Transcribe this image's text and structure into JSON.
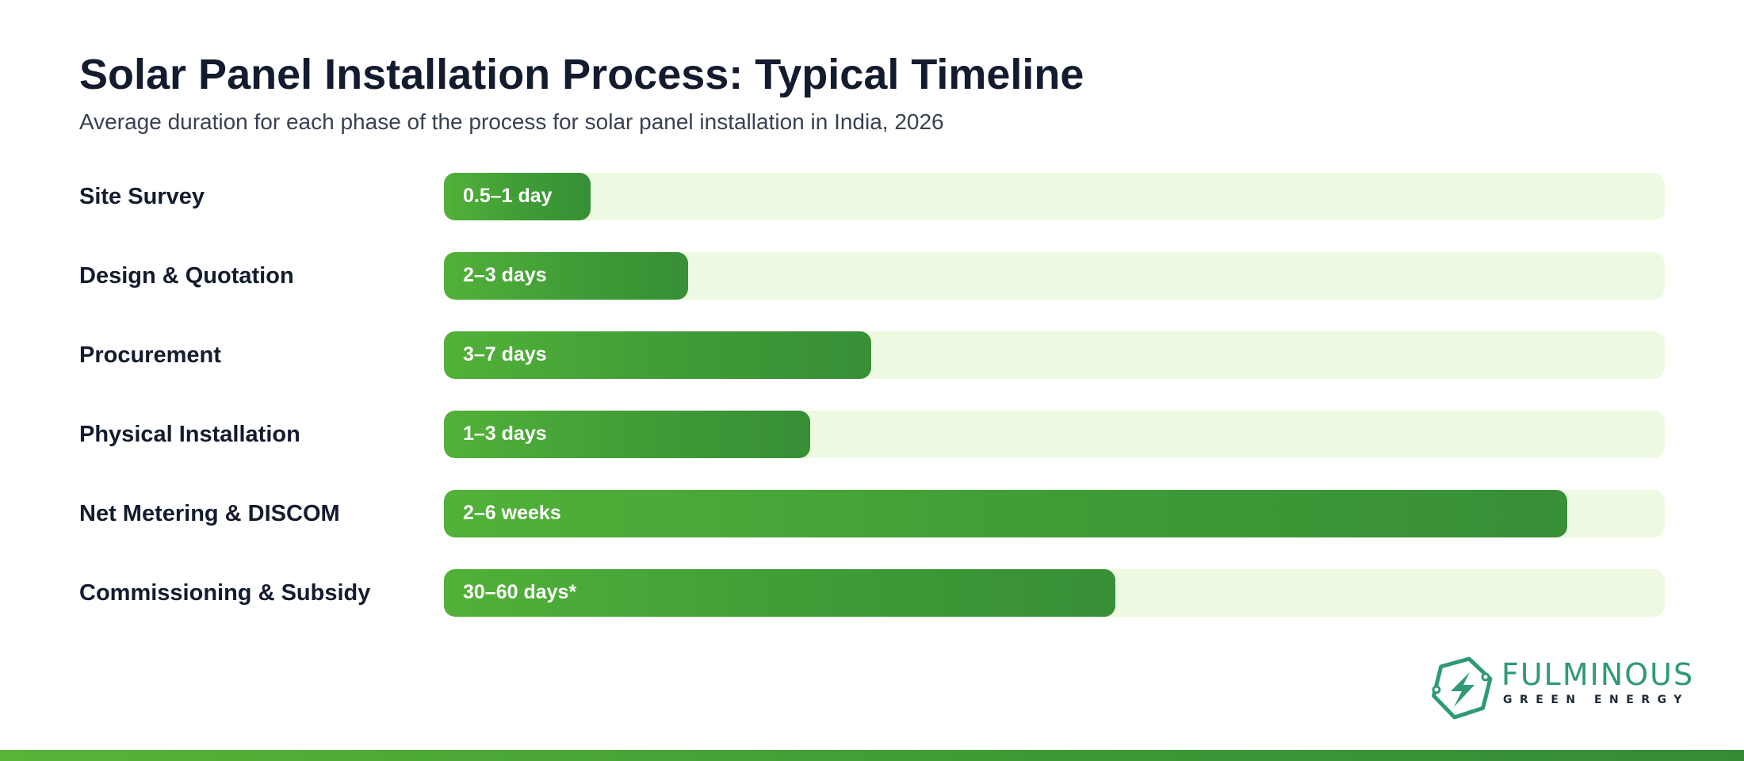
{
  "chart_data": {
    "type": "bar",
    "orientation": "horizontal",
    "title": "Solar Panel Installation Process: Typical Timeline",
    "subtitle": "Average duration for each phase of the process for solar panel installation in India, 2026",
    "categories": [
      "Site Survey",
      "Design & Quotation",
      "Procurement",
      "Physical Installation",
      "Net Metering & DISCOM",
      "Commissioning & Subsidy"
    ],
    "value_labels": [
      "0.5–1 day",
      "2–3 days",
      "3–7 days",
      "1–3 days",
      "2–6 weeks",
      "30–60 days*"
    ],
    "values": [
      0.12,
      0.2,
      0.35,
      0.3,
      0.92,
      0.55
    ],
    "ylim": [
      0,
      1
    ],
    "grid": false,
    "legend": "none",
    "colors": {
      "bar_start": "#52b138",
      "bar_end": "#378f36",
      "track": "#edfae1",
      "text": "#131b2e"
    }
  },
  "brand": {
    "name": "FULMINOUS",
    "tagline": "GREEN ENERGY",
    "icon": "hexagon-lightning-icon",
    "color": "#2f9a73"
  }
}
